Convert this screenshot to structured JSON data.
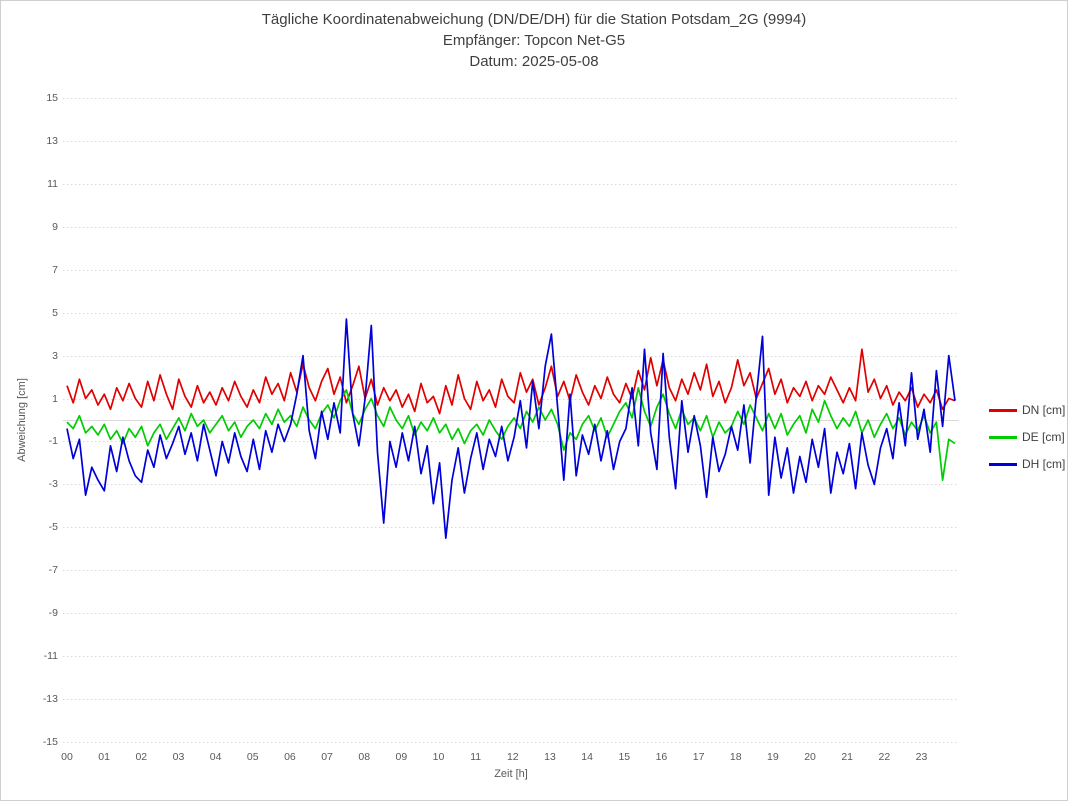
{
  "chart_data": {
    "type": "line",
    "title": "Tägliche Koordinatenabweichung (DN/DE/DH) für die Station Potsdam_2G (9994)",
    "subtitle": "Empfänger: Topcon Net-G5",
    "date_line": "Datum: 2025-05-08",
    "xlabel": "Zeit [h]",
    "ylabel": "Abweichung [cm]",
    "ylim": [
      -15,
      15
    ],
    "y_ticks": [
      15,
      13,
      11,
      9,
      7,
      5,
      3,
      1,
      -1,
      -3,
      -5,
      -7,
      -9,
      -11,
      -13,
      -15
    ],
    "x_ticks": [
      "00",
      "01",
      "02",
      "03",
      "04",
      "05",
      "06",
      "07",
      "08",
      "09",
      "10",
      "11",
      "12",
      "13",
      "14",
      "15",
      "16",
      "17",
      "18",
      "19",
      "20",
      "21",
      "22",
      "23"
    ],
    "grid": "horizontal dotted lines at odd values, solid light line at zero, no vertical gridlines",
    "legend_position": "right",
    "grid_color": "#d9d9d9",
    "series": [
      {
        "name": "DN [cm]",
        "color": "#e00000",
        "values": [
          1.6,
          0.8,
          1.9,
          1.0,
          1.4,
          0.7,
          1.2,
          0.5,
          1.5,
          0.9,
          1.7,
          1.0,
          0.6,
          1.8,
          0.9,
          2.1,
          1.2,
          0.5,
          1.9,
          1.1,
          0.6,
          1.6,
          0.8,
          1.3,
          0.7,
          1.5,
          0.9,
          1.8,
          1.1,
          0.6,
          1.4,
          0.8,
          2.0,
          1.2,
          1.7,
          0.9,
          2.2,
          1.3,
          2.6,
          1.5,
          0.9,
          1.8,
          2.4,
          1.2,
          2.0,
          0.8,
          1.6,
          2.5,
          1.0,
          1.9,
          0.7,
          1.5,
          0.9,
          1.4,
          0.6,
          1.2,
          0.4,
          1.7,
          0.8,
          1.1,
          0.3,
          1.6,
          0.7,
          2.1,
          1.0,
          0.5,
          1.8,
          0.9,
          1.4,
          0.6,
          1.9,
          1.1,
          0.8,
          2.2,
          1.3,
          1.9,
          0.7,
          1.5,
          2.5,
          1.1,
          1.8,
          0.9,
          2.1,
          1.3,
          0.7,
          1.6,
          1.0,
          2.0,
          1.2,
          0.8,
          1.7,
          1.0,
          2.3,
          1.4,
          2.9,
          1.6,
          2.8,
          1.5,
          0.9,
          1.9,
          1.2,
          2.2,
          1.4,
          2.6,
          1.1,
          1.8,
          0.8,
          1.5,
          2.8,
          1.6,
          2.2,
          1.0,
          1.7,
          2.4,
          1.2,
          1.9,
          0.8,
          1.5,
          1.1,
          1.8,
          0.9,
          1.6,
          1.2,
          2.0,
          1.4,
          0.8,
          1.5,
          0.9,
          3.3,
          1.3,
          1.9,
          1.0,
          1.6,
          0.7,
          1.3,
          0.9,
          1.5,
          0.6,
          1.2,
          0.8,
          1.4,
          0.5,
          1.0,
          0.9
        ]
      },
      {
        "name": "DE [cm]",
        "color": "#00cc00",
        "values": [
          -0.1,
          -0.4,
          0.2,
          -0.6,
          -0.3,
          -0.7,
          -0.2,
          -0.9,
          -0.5,
          -1.1,
          -0.4,
          -0.8,
          -0.3,
          -1.2,
          -0.6,
          -0.2,
          -0.9,
          -0.4,
          0.1,
          -0.5,
          0.3,
          -0.3,
          0.0,
          -0.6,
          -0.2,
          0.2,
          -0.5,
          -0.1,
          -0.8,
          -0.3,
          0.0,
          -0.4,
          0.3,
          -0.2,
          0.5,
          -0.1,
          0.2,
          -0.3,
          0.6,
          0.0,
          -0.4,
          0.3,
          0.7,
          0.1,
          0.9,
          1.4,
          0.3,
          -0.2,
          0.5,
          1.0,
          0.2,
          -0.3,
          0.6,
          0.0,
          -0.4,
          0.2,
          -0.7,
          -0.1,
          -0.5,
          0.1,
          -0.6,
          -0.2,
          -0.9,
          -0.4,
          -1.1,
          -0.5,
          -0.2,
          -0.7,
          0.0,
          -0.5,
          -0.9,
          -0.3,
          0.1,
          -0.4,
          0.4,
          -0.1,
          0.6,
          0.0,
          0.5,
          -0.2,
          -1.4,
          -0.6,
          -0.9,
          -0.2,
          0.2,
          -0.5,
          0.1,
          -0.8,
          -0.2,
          0.4,
          0.8,
          0.1,
          1.5,
          0.4,
          -0.3,
          0.6,
          1.2,
          0.3,
          -0.4,
          0.5,
          -0.2,
          0.1,
          -0.5,
          0.2,
          -0.8,
          -0.1,
          -0.6,
          -0.3,
          0.4,
          -0.2,
          0.7,
          0.1,
          -0.5,
          0.3,
          -0.4,
          0.3,
          -0.7,
          -0.2,
          0.2,
          -0.6,
          0.5,
          -0.1,
          0.9,
          0.2,
          -0.4,
          0.1,
          -0.3,
          0.4,
          -0.6,
          0.0,
          -0.8,
          -0.2,
          0.3,
          -0.4,
          0.1,
          -0.7,
          -0.1,
          -0.5,
          0.2,
          -0.6,
          -0.1,
          -2.8,
          -0.9,
          -1.1
        ]
      },
      {
        "name": "DH [cm]",
        "color": "#0000d8",
        "values": [
          -0.4,
          -1.8,
          -0.9,
          -3.5,
          -2.2,
          -2.8,
          -3.3,
          -1.2,
          -2.4,
          -0.8,
          -1.9,
          -2.6,
          -2.9,
          -1.4,
          -2.2,
          -0.7,
          -1.8,
          -1.1,
          -0.3,
          -1.6,
          -0.6,
          -1.9,
          -0.2,
          -1.4,
          -2.6,
          -1.0,
          -2.0,
          -0.6,
          -1.7,
          -2.4,
          -0.9,
          -2.3,
          -0.5,
          -1.5,
          -0.2,
          -1.0,
          -0.2,
          1.2,
          3.0,
          -0.5,
          -1.8,
          0.4,
          -0.9,
          0.8,
          -0.6,
          4.7,
          0.3,
          -1.2,
          1.0,
          4.4,
          -1.5,
          -4.8,
          -1.0,
          -2.2,
          -0.6,
          -1.9,
          -0.3,
          -2.5,
          -1.2,
          -3.9,
          -2.0,
          -5.5,
          -2.8,
          -1.3,
          -3.4,
          -1.8,
          -0.6,
          -2.3,
          -0.9,
          -1.7,
          -0.3,
          -1.9,
          -0.8,
          0.9,
          -1.3,
          1.8,
          -0.4,
          2.5,
          4.0,
          0.6,
          -2.8,
          1.2,
          -2.6,
          -0.7,
          -1.6,
          -0.2,
          -1.9,
          -0.5,
          -2.3,
          -1.0,
          -0.4,
          1.5,
          -1.2,
          3.3,
          -0.6,
          -2.3,
          3.1,
          -0.8,
          -3.2,
          0.9,
          -1.5,
          0.2,
          -1.2,
          -3.6,
          -0.8,
          -2.4,
          -1.6,
          -0.3,
          -1.4,
          0.7,
          -2.0,
          1.1,
          3.9,
          -3.5,
          -0.8,
          -2.7,
          -1.3,
          -3.4,
          -1.7,
          -2.9,
          -0.9,
          -2.2,
          -0.4,
          -3.4,
          -1.5,
          -2.5,
          -1.1,
          -3.2,
          -0.6,
          -2.1,
          -3.0,
          -1.3,
          -0.4,
          -1.8,
          0.8,
          -1.2,
          2.2,
          -0.9,
          0.5,
          -1.5,
          2.3,
          -0.3,
          3.0,
          0.9
        ]
      }
    ]
  }
}
